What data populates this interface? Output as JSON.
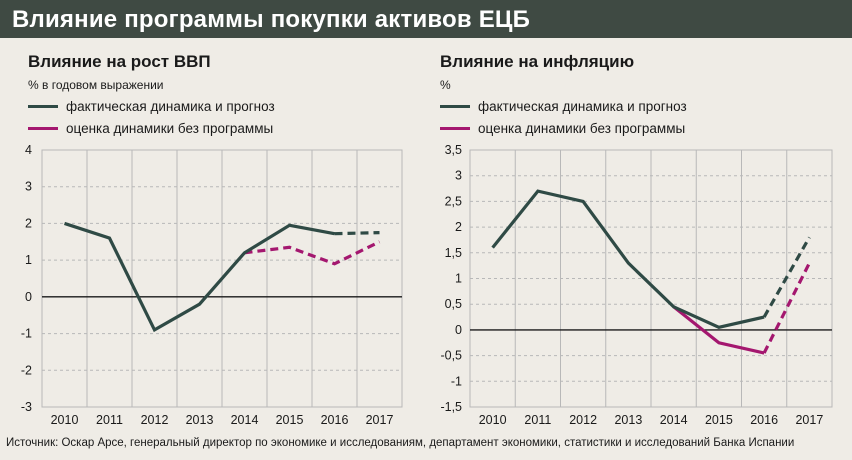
{
  "header": {
    "title": "Влияние программы покупки активов ЕЦБ"
  },
  "source": "Источник: Оскар Арсе, генеральный директор по экономике и исследованиям, департамент экономики, статистики и исследований Банка Испании",
  "colors": {
    "header_bg": "#3f4a43",
    "actual": "#2f4a45",
    "no_program": "#a4176f",
    "grid": "#b8b8b8",
    "background": "#efece6"
  },
  "chart_data": [
    {
      "type": "line",
      "title": "Влияние на рост ВВП",
      "subtitle": "% в годовом выражении",
      "categories": [
        "2010",
        "2011",
        "2012",
        "2013",
        "2014",
        "2015",
        "2016",
        "2017"
      ],
      "ylim": [
        -3,
        4
      ],
      "yticks": [
        "-3",
        "-2",
        "-1",
        "0",
        "1",
        "2",
        "3",
        "4"
      ],
      "grid": true,
      "series": [
        {
          "name": "фактическая динамика и прогноз",
          "color": "#2f4a45",
          "solid": [
            [
              2010,
              2.0
            ],
            [
              2011,
              1.6
            ],
            [
              2012,
              -0.9
            ],
            [
              2013,
              -0.2
            ],
            [
              2014,
              1.2
            ],
            [
              2015,
              1.95
            ],
            [
              2016,
              1.72
            ]
          ],
          "dashed": [
            [
              2016,
              1.72
            ],
            [
              2017,
              1.75
            ]
          ]
        },
        {
          "name": "оценка динамики без программы",
          "color": "#a4176f",
          "solid": [],
          "dashed": [
            [
              2014,
              1.2
            ],
            [
              2015,
              1.35
            ],
            [
              2016,
              0.9
            ],
            [
              2017,
              1.5
            ]
          ]
        }
      ]
    },
    {
      "type": "line",
      "title": "Влияние на инфляцию",
      "subtitle": "%",
      "categories": [
        "2010",
        "2011",
        "2012",
        "2013",
        "2014",
        "2015",
        "2016",
        "2017"
      ],
      "ylim": [
        -1.5,
        3.5
      ],
      "yticks": [
        "-1,5",
        "-1",
        "-0,5",
        "0",
        "0,5",
        "1",
        "1,5",
        "2",
        "2,5",
        "3",
        "3,5"
      ],
      "grid": true,
      "series": [
        {
          "name": "фактическая динамика и прогноз",
          "color": "#2f4a45",
          "solid": [
            [
              2010,
              1.6
            ],
            [
              2011,
              2.7
            ],
            [
              2012,
              2.5
            ],
            [
              2013,
              1.3
            ],
            [
              2014,
              0.45
            ],
            [
              2015,
              0.05
            ],
            [
              2016,
              0.25
            ]
          ],
          "dashed": [
            [
              2016,
              0.25
            ],
            [
              2017,
              1.8
            ]
          ]
        },
        {
          "name": "оценка динамики без программы",
          "color": "#a4176f",
          "solid": [
            [
              2014,
              0.45
            ],
            [
              2015,
              -0.25
            ],
            [
              2016,
              -0.45
            ]
          ],
          "dashed": [
            [
              2016,
              -0.45
            ],
            [
              2017,
              1.3
            ]
          ]
        }
      ]
    }
  ]
}
